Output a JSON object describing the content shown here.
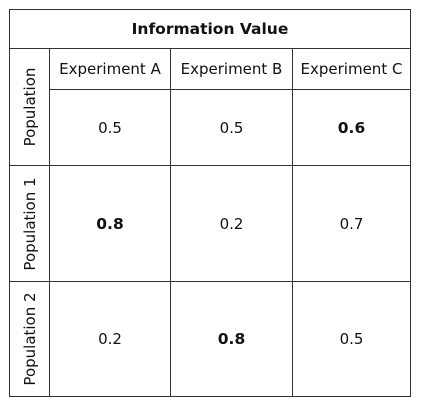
{
  "table": {
    "title": "Information Value",
    "columns": [
      "Experiment A",
      "Experiment B",
      "Experiment C"
    ],
    "rows": [
      {
        "label": "Population",
        "values": [
          "0.5",
          "0.5",
          "0.6"
        ],
        "bold": [
          false,
          false,
          true
        ]
      },
      {
        "label": "Population 1",
        "values": [
          "0.8",
          "0.2",
          "0.7"
        ],
        "bold": [
          true,
          false,
          false
        ]
      },
      {
        "label": "Population 2",
        "values": [
          "0.2",
          "0.8",
          "0.5"
        ],
        "bold": [
          false,
          true,
          false
        ]
      }
    ]
  }
}
